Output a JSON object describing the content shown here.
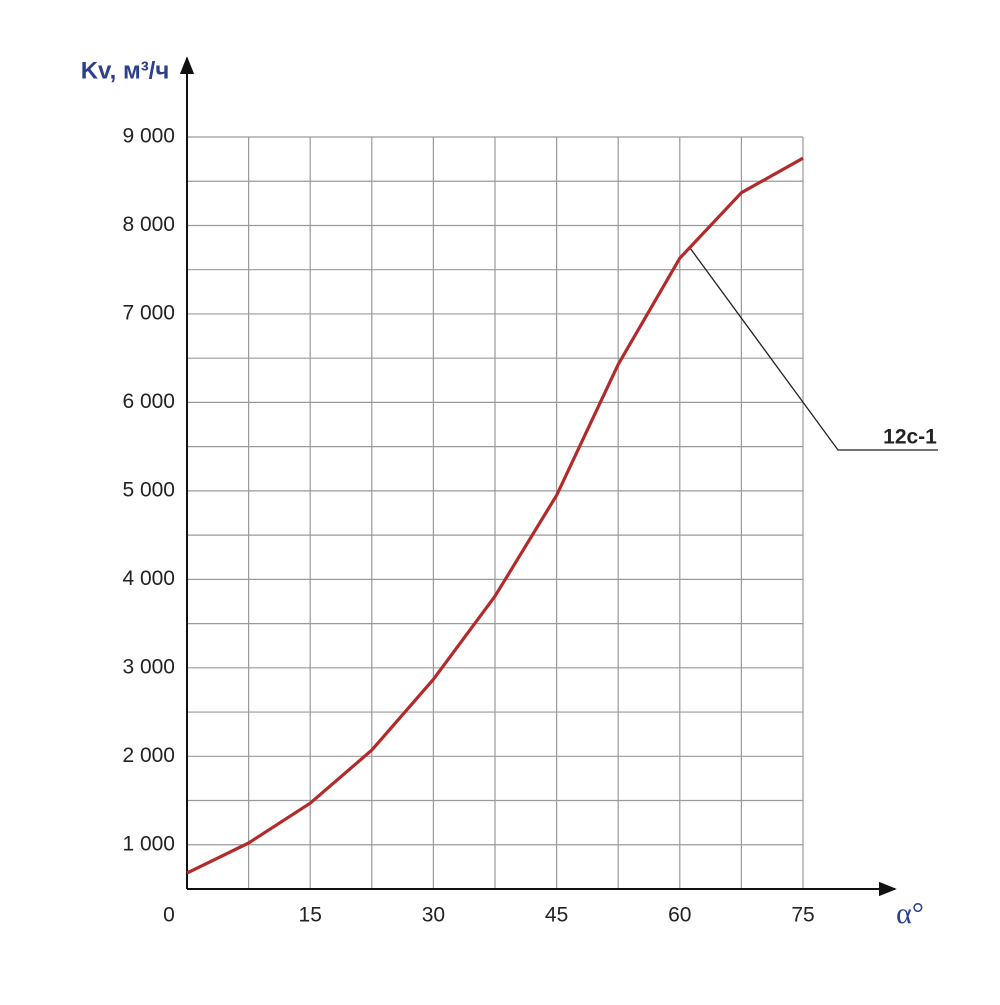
{
  "chart_data": {
    "type": "line",
    "y_label": "Kv, м³/ч",
    "x_label": "α°",
    "x": [
      0,
      7.5,
      15,
      22.5,
      30,
      37.5,
      45,
      52.5,
      60,
      67.5,
      75
    ],
    "series": [
      {
        "name": "12c-1",
        "color": "#b22a2a",
        "values": [
          680,
          1020,
          1470,
          2070,
          2870,
          3810,
          4950,
          6430,
          7630,
          8370,
          8760
        ]
      }
    ],
    "xlim": [
      0,
      75
    ],
    "xticks": [
      0,
      15,
      30,
      45,
      60,
      75
    ],
    "x_minor_ticks": [
      7.5,
      22.5,
      37.5,
      52.5,
      67.5
    ],
    "ylim": [
      500,
      9000
    ],
    "yticks": [
      {
        "value": 1000,
        "label": "1 000"
      },
      {
        "value": 2000,
        "label": "2 000"
      },
      {
        "value": 3000,
        "label": "3 000"
      },
      {
        "value": 4000,
        "label": "4 000"
      },
      {
        "value": 5000,
        "label": "5 000"
      },
      {
        "value": 6000,
        "label": "6 000"
      },
      {
        "value": 7000,
        "label": "7 000"
      },
      {
        "value": 8000,
        "label": "8 000"
      },
      {
        "value": 9000,
        "label": "9 000"
      }
    ],
    "y_minor_ticks": [
      1500,
      2500,
      3500,
      4500,
      5500,
      6500,
      7500,
      8500
    ],
    "grid": true
  }
}
